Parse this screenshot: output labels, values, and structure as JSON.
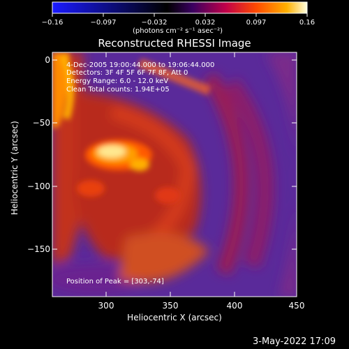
{
  "colorbar": {
    "ticks": [
      "−0.16",
      "−0.097",
      "−0.032",
      "0.032",
      "0.097",
      "0.16"
    ],
    "unit_label": "(photons cm⁻² s⁻¹ asec⁻²)",
    "range": [
      -0.16,
      0.16
    ],
    "colormap_stops": [
      "#0000ff",
      "#000000",
      "#3a0060",
      "#c0004a",
      "#ff4a00",
      "#ffb000",
      "#ffffe0"
    ]
  },
  "image": {
    "title": "Reconstructed RHESSI Image",
    "time_range": "4-Dec-2005 19:00:44.000 to 19:06:44.000",
    "detectors": "Detectors: 3F 4F 5F 6F 7F 8F, Att 0",
    "energy_range": "Energy Range: 6.0 - 12.0 keV",
    "method_counts": "Clean    Total counts: 1.94E+05",
    "peak_position": "Position of Peak = [303,-74]",
    "colors": {
      "background": "#000000",
      "low": "#4a1d8f",
      "mid": "#d4321a",
      "high": "#ffffe0"
    }
  },
  "axes": {
    "x_label": "Heliocentric X (arcsec)",
    "y_label": "Heliocentric Y (arcsec)",
    "x_ticks": [
      "300",
      "350",
      "400",
      "450"
    ],
    "y_ticks": [
      "0",
      "−50",
      "−100",
      "−150"
    ],
    "x_range": [
      260,
      450
    ],
    "y_range": [
      -190,
      5
    ]
  },
  "footer": {
    "date": "3-May-2022 17:09"
  }
}
